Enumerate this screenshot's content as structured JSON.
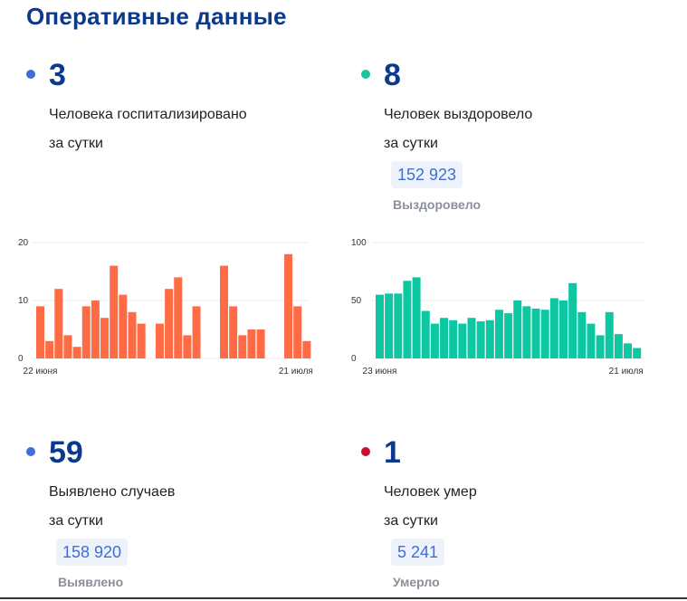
{
  "title": "Оперативные данные",
  "hospitalized": {
    "value": "3",
    "line1": "Человека госпитализировано",
    "line2": "за сутки",
    "dot_color": "#3f6ed8"
  },
  "recovered": {
    "value": "8",
    "line1": "Человек выздоровело",
    "line2": "за сутки",
    "total": "152 923",
    "total_label": "Выздоровело",
    "dot_color": "#1cc4a0"
  },
  "cases": {
    "value": "59",
    "line1": "Выявлено случаев",
    "line2": "за сутки",
    "total": "158 920",
    "total_label": "Выявлено",
    "dot_color": "#3f6ed8"
  },
  "deaths": {
    "value": "1",
    "line1": "Человек умер",
    "line2": "за сутки",
    "total": "5 241",
    "total_label": "Умерло",
    "dot_color": "#c8102e"
  },
  "chart_data": [
    {
      "type": "bar",
      "color": "#ff6b45",
      "ylim": [
        0,
        20
      ],
      "yticks": [
        0,
        10,
        20
      ],
      "x_start_label": "22 июня",
      "x_end_label": "21 июля",
      "values": [
        9,
        3,
        12,
        4,
        2,
        9,
        10,
        7,
        16,
        11,
        8,
        6,
        0,
        6,
        12,
        14,
        4,
        9,
        0,
        0,
        16,
        9,
        4,
        5,
        5,
        0,
        0,
        18,
        9,
        3
      ]
    },
    {
      "type": "bar",
      "color": "#0cc7a1",
      "ylim": [
        0,
        100
      ],
      "yticks": [
        0,
        50,
        100
      ],
      "x_start_label": "23 июня",
      "x_end_label": "21 июля",
      "values": [
        55,
        56,
        56,
        67,
        70,
        41,
        30,
        35,
        33,
        30,
        35,
        32,
        33,
        42,
        39,
        50,
        45,
        43,
        42,
        52,
        50,
        65,
        40,
        30,
        20,
        40,
        21,
        13,
        9
      ]
    }
  ]
}
